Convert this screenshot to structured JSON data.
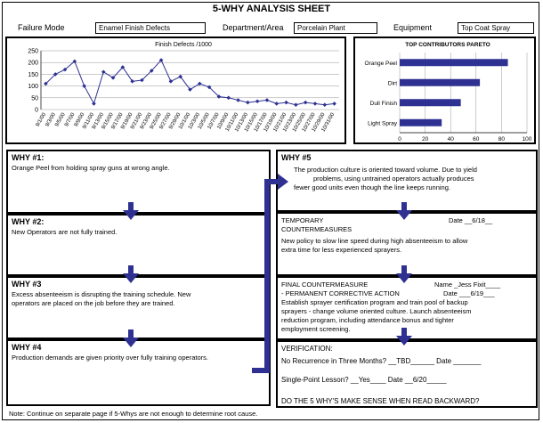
{
  "header": {
    "title": "5-WHY ANALYSIS SHEET",
    "failure_mode_label": "Failure Mode",
    "failure_mode_value": "Enamel Finish Defects",
    "department_label": "Department/Area",
    "department_value": "Porcelain Plant",
    "equipment_label": "Equipment",
    "equipment_value": "Top Coat Spray"
  },
  "chart_data": [
    {
      "type": "line",
      "title": "Finish Defects /1000",
      "x": [
        "9/1/00",
        "9/3/00",
        "9/5/00",
        "9/7/00",
        "9/9/00",
        "9/11/00",
        "9/13/00",
        "9/15/00",
        "9/17/00",
        "9/19/00",
        "9/21/00",
        "9/23/00",
        "9/25/00",
        "9/27/00",
        "9/29/00",
        "10/1/00",
        "10/3/00",
        "10/5/00",
        "10/7/00",
        "10/9/00",
        "10/11/00",
        "10/13/00",
        "10/15/00",
        "10/17/00",
        "10/19/00",
        "10/21/00",
        "10/23/00",
        "10/25/00",
        "10/27/00",
        "10/29/00",
        "10/31/00"
      ],
      "xtick_labels": [
        "9/1/00",
        "9/3/00",
        "9/5/00",
        "9/7/00",
        "9/9/00",
        "9/11/00",
        "9/13/00",
        "9/15/00",
        "9/17/00",
        "9/19/00",
        "9/21/00",
        "9/23/00",
        "9/25/00",
        "9/27/00",
        "9/29/00",
        "10/1/00",
        "10/3/00",
        "10/5/00",
        "10/7/00",
        "10/9/00",
        "10/11/00",
        "10/13/00",
        "10/15/00",
        "10/17/00",
        "10/19/00",
        "10/21/00",
        "10/23/00",
        "10/25/00",
        "10/27/00",
        "10/29/00",
        "10/31/00"
      ],
      "y": [
        110,
        150,
        170,
        205,
        100,
        25,
        160,
        135,
        180,
        120,
        125,
        165,
        210,
        120,
        140,
        85,
        110,
        95,
        55,
        50,
        40,
        30,
        35,
        40,
        25,
        30,
        20,
        30,
        25,
        20,
        25
      ],
      "ylim": [
        0,
        250
      ],
      "yticks": [
        0,
        50,
        100,
        150,
        200,
        250
      ],
      "grid": "horizontal",
      "color": "#2e3192"
    },
    {
      "type": "bar",
      "orientation": "horizontal",
      "title": "TOP CONTRIBUTORS PARETO",
      "categories": [
        "Orange Peel",
        "Dirt",
        "Dull Finish",
        "Light Spray"
      ],
      "values": [
        85,
        63,
        48,
        33
      ],
      "xlim": [
        0,
        100
      ],
      "xticks": [
        0,
        20,
        40,
        60,
        80,
        100
      ],
      "grid": "vertical",
      "color": "#2e3192"
    }
  ],
  "whys": [
    {
      "title": "WHY #1:",
      "text": "Orange Peel from holding spray guns at wrong angle."
    },
    {
      "title": "WHY #2:",
      "text": "New Operators are not fully trained."
    },
    {
      "title": "WHY #3",
      "text_lines": [
        "Excess absenteeism is disrupting the training schedule.  New",
        "operators are placed on the job before they are trained."
      ]
    },
    {
      "title": "WHY #4",
      "text": "Production demands are given priority over fully training operators."
    },
    {
      "title": "WHY #5",
      "text_lines": [
        "The production culture is oriented toward volume.  Due to yield",
        "problems, using untrained operators actually produces",
        "fewer good units even though the line keeps running."
      ]
    }
  ],
  "temporary": {
    "label_1": "TEMPORARY",
    "label_2": "COUNTERMEASURES",
    "date": "Date __6/18__",
    "text_lines": [
      "New policy to slow line speed during high absenteeism to allow",
      "extra time for less experienced sprayers."
    ]
  },
  "final": {
    "label_1": "FINAL COUNTERMEASURE",
    "name": "Name _Jess Fixit____",
    "label_2": "- PERMANENT CORRECTIVE ACTION",
    "date": "Date ___6/19___",
    "text_lines": [
      "Establish sprayer certification program and train pool of backup",
      "sprayers - change volume oriented culture.  Launch absenteeism",
      "reduction program, including attendance bonus and tighter",
      "employment screening."
    ]
  },
  "verification": {
    "label": "VERIFICATION:",
    "recurrence": "No Recurrence in Three Months?  __TBD______  Date _______",
    "single_point": "Single-Point Lesson?  __Yes____  Date __6/20_____",
    "question": "DO THE 5 WHY'S MAKE SENSE WHEN READ BACKWARD?"
  },
  "note": "Note:  Continue on separate page if 5-Whys are not enough to determine root cause."
}
